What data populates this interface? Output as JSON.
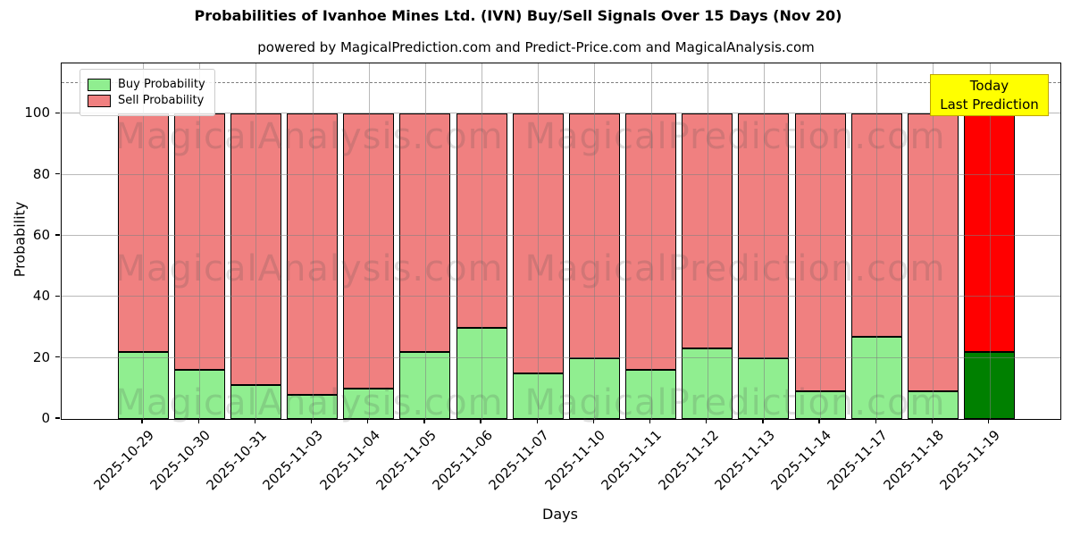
{
  "chart": {
    "title": "Probabilities of Ivanhoe Mines Ltd. (IVN) Buy/Sell Signals Over 15 Days (Nov 20)",
    "subtitle": "powered by MagicalPrediction.com and Predict-Price.com and MagicalAnalysis.com",
    "xlabel": "Days",
    "ylabel": "Probability"
  },
  "legend": {
    "items": [
      {
        "label": "Buy Probability",
        "color": "#90ee90"
      },
      {
        "label": "Sell Probability",
        "color": "#f08080"
      }
    ]
  },
  "annotation": {
    "line1": "Today",
    "line2": "Last Prediction",
    "bg_color": "#ffff00"
  },
  "watermarks": {
    "left_text": "MagicalAnalysis.com",
    "right_text": "MagicalPrediction.com"
  },
  "chart_data": {
    "type": "bar",
    "stacked": true,
    "title": "Probabilities of Ivanhoe Mines Ltd. (IVN) Buy/Sell Signals Over 15 Days (Nov 20)",
    "xlabel": "Days",
    "ylabel": "Probability",
    "categories": [
      "2025-10-29",
      "2025-10-30",
      "2025-10-31",
      "2025-11-03",
      "2025-11-04",
      "2025-11-05",
      "2025-11-06",
      "2025-11-07",
      "2025-11-10",
      "2025-11-11",
      "2025-11-12",
      "2025-11-13",
      "2025-11-14",
      "2025-11-17",
      "2025-11-18",
      "2025-11-19"
    ],
    "series": [
      {
        "name": "Buy Probability",
        "values": [
          22,
          16,
          11,
          8,
          10,
          22,
          30,
          15,
          20,
          16,
          23,
          20,
          9,
          27,
          9,
          22
        ],
        "color": "#90ee90",
        "last_bar_color": "#008000"
      },
      {
        "name": "Sell Probability",
        "values": [
          78,
          84,
          89,
          92,
          90,
          78,
          70,
          85,
          80,
          84,
          77,
          80,
          91,
          73,
          91,
          78
        ],
        "color": "#f08080",
        "last_bar_color": "#ff0000"
      }
    ],
    "bar_edge_color": "#000000",
    "ylim": [
      0,
      116.5
    ],
    "yticks": [
      0,
      20,
      40,
      60,
      80,
      100
    ],
    "dashed_line_y": 110,
    "grid": true,
    "legend_position": "upper-left"
  }
}
